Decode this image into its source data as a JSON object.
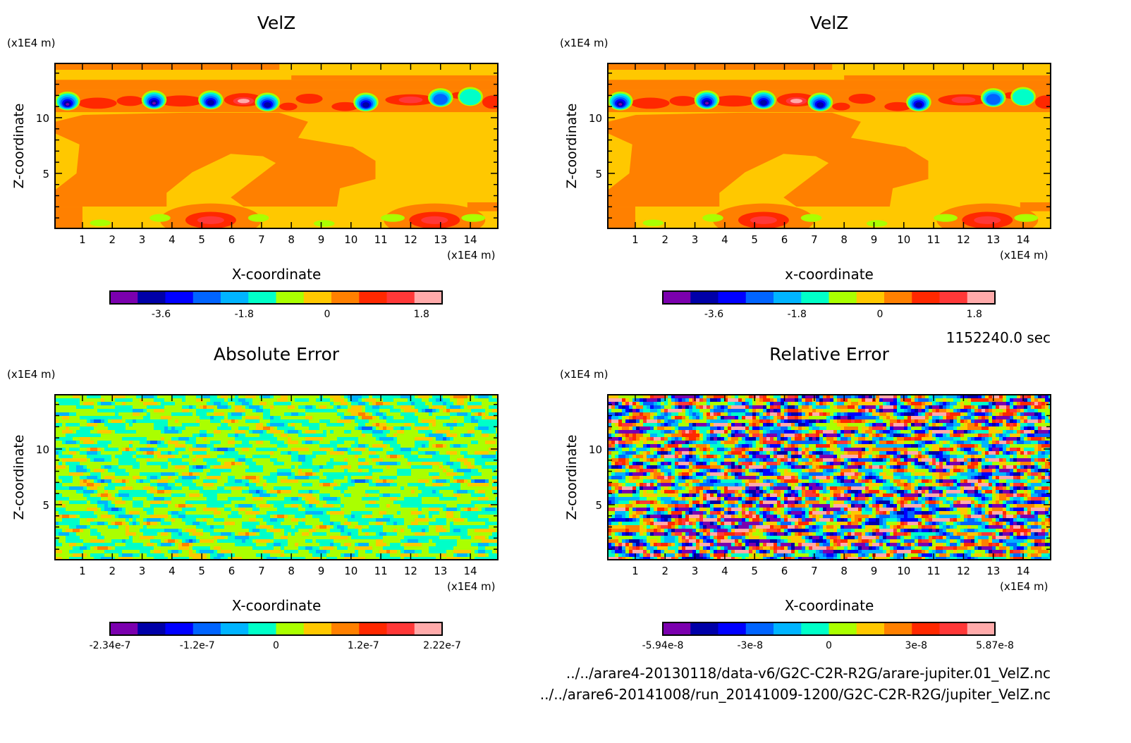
{
  "time_label": "1152240.0 sec",
  "files": [
    "../../arare4-20130118/data-v6/G2C-C2R-R2G/arare-jupiter.01_VelZ.nc",
    "../../arare6-20141008/run_20141009-1200/G2C-C2R-R2G/jupiter_VelZ.nc"
  ],
  "colors": [
    "#7b00ae",
    "#0000a8",
    "#0000ff",
    "#0064ff",
    "#00b4ff",
    "#00ffc8",
    "#aaff00",
    "#ffc800",
    "#ff8000",
    "#ff2800",
    "#ff3838",
    "#ffaaaa"
  ],
  "chart_data": [
    {
      "type": "heatmap",
      "title": "VelZ",
      "xlabel": "X-coordinate",
      "ylabel": "Z-coordinate",
      "x_unit": "(x1E4 m)",
      "y_unit": "(x1E4 m)",
      "xlim": [
        0.08,
        14.92
      ],
      "ylim": [
        0.06,
        14.87
      ],
      "xticks": [
        1,
        2,
        3,
        4,
        5,
        6,
        7,
        8,
        9,
        10,
        11,
        12,
        13,
        14
      ],
      "yticks": [
        5,
        10
      ],
      "colorbar": {
        "range": [
          -4.8,
          2.4
        ],
        "ticks": [
          "-3.6",
          "-1.8",
          "0",
          "1.8"
        ]
      },
      "background_value": -0.3,
      "regions": [
        {
          "value": 0.3,
          "rect": [
            0.08,
            14.3,
            7.6,
            14.87
          ]
        },
        {
          "value": 0.3,
          "rect": [
            0.08,
            12.5,
            14.92,
            13.4
          ]
        },
        {
          "value": 0.3,
          "rect": [
            8.0,
            13.4,
            14.92,
            13.8
          ]
        },
        {
          "value": 0.3,
          "rect": [
            0.08,
            10.5,
            14.92,
            12.5
          ]
        },
        {
          "value": 0.3,
          "polygon": [
            [
              0.08,
              9.63
            ],
            [
              1.02,
              10.25
            ],
            [
              4.47,
              10.45
            ],
            [
              7.59,
              10.45
            ],
            [
              8.56,
              9.63
            ],
            [
              8.23,
              8.19
            ],
            [
              10.06,
              7.37
            ],
            [
              10.82,
              6.13
            ],
            [
              10.82,
              4.49
            ],
            [
              9.63,
              3.66
            ],
            [
              9.53,
              2.02
            ],
            [
              6.4,
              2.02
            ],
            [
              5.97,
              2.84
            ],
            [
              7.48,
              5.93
            ],
            [
              7.05,
              6.54
            ],
            [
              5.97,
              6.75
            ],
            [
              4.68,
              5.1
            ],
            [
              3.82,
              3.25
            ],
            [
              3.82,
              2.02
            ],
            [
              0.08,
              2.02
            ]
          ]
        },
        {
          "value": -0.3,
          "polygon": [
            [
              0.08,
              8.6
            ],
            [
              0.9,
              7.6
            ],
            [
              0.8,
              5.0
            ],
            [
              0.08,
              3.5
            ]
          ]
        },
        {
          "value": 0.3,
          "rect": [
            0.08,
            0.06,
            1.0,
            2.02
          ]
        },
        {
          "value": 0.3,
          "rect": [
            13.9,
            1.6,
            14.92,
            2.4
          ]
        }
      ],
      "blobs": [
        {
          "x": 5.3,
          "z": 0.8,
          "rx": 1.7,
          "rz": 1.5,
          "value": 0.3
        },
        {
          "x": 5.3,
          "z": 0.8,
          "rx": 0.85,
          "rz": 0.75,
          "value": 0.9
        },
        {
          "x": 5.3,
          "z": 0.8,
          "rx": 0.45,
          "rz": 0.35,
          "value": 1.5
        },
        {
          "x": 12.8,
          "z": 0.8,
          "rx": 1.7,
          "rz": 1.5,
          "value": 0.3
        },
        {
          "x": 12.8,
          "z": 0.8,
          "rx": 0.85,
          "rz": 0.75,
          "value": 0.9
        },
        {
          "x": 12.8,
          "z": 0.8,
          "rx": 0.45,
          "rz": 0.35,
          "value": 1.5
        },
        {
          "x": 1.6,
          "z": 0.55,
          "rx": 0.35,
          "rz": 0.3,
          "value": -0.9
        },
        {
          "x": 3.6,
          "z": 1.0,
          "rx": 0.35,
          "rz": 0.35,
          "value": -0.9
        },
        {
          "x": 6.9,
          "z": 1.0,
          "rx": 0.35,
          "rz": 0.35,
          "value": -0.9
        },
        {
          "x": 9.1,
          "z": 0.5,
          "rx": 0.35,
          "rz": 0.3,
          "value": -0.9
        },
        {
          "x": 11.4,
          "z": 1.0,
          "rx": 0.4,
          "rz": 0.35,
          "value": -0.9
        },
        {
          "x": 14.1,
          "z": 1.0,
          "rx": 0.4,
          "rz": 0.35,
          "value": -0.9
        },
        {
          "x": 1.5,
          "z": 11.3,
          "rx": 0.65,
          "rz": 0.5,
          "value": 0.9
        },
        {
          "x": 2.6,
          "z": 11.5,
          "rx": 0.45,
          "rz": 0.45,
          "value": 0.9
        },
        {
          "x": 4.3,
          "z": 11.5,
          "rx": 0.75,
          "rz": 0.5,
          "value": 0.9
        },
        {
          "x": 6.4,
          "z": 11.6,
          "rx": 0.65,
          "rz": 0.6,
          "value": 0.9
        },
        {
          "x": 6.4,
          "z": 11.5,
          "rx": 0.35,
          "rz": 0.35,
          "value": 1.5
        },
        {
          "x": 6.4,
          "z": 11.5,
          "rx": 0.2,
          "rz": 0.2,
          "value": 2.1
        },
        {
          "x": 7.9,
          "z": 11.0,
          "rx": 0.3,
          "rz": 0.35,
          "value": 0.9
        },
        {
          "x": 8.6,
          "z": 11.7,
          "rx": 0.45,
          "rz": 0.45,
          "value": 0.9
        },
        {
          "x": 9.8,
          "z": 11.0,
          "rx": 0.45,
          "rz": 0.4,
          "value": 0.9
        },
        {
          "x": 12.0,
          "z": 11.6,
          "rx": 0.85,
          "rz": 0.5,
          "value": 0.9
        },
        {
          "x": 12.0,
          "z": 11.6,
          "rx": 0.4,
          "rz": 0.3,
          "value": 1.5
        },
        {
          "x": 13.6,
          "z": 12.0,
          "rx": 0.25,
          "rz": 0.3,
          "value": 0.9
        },
        {
          "x": 14.75,
          "z": 11.4,
          "rx": 0.35,
          "rz": 0.6,
          "value": 0.9
        }
      ],
      "vortices": [
        {
          "x": 0.5,
          "z": 11.5,
          "min": -4.5
        },
        {
          "x": 3.4,
          "z": 11.6,
          "min": -4.8
        },
        {
          "x": 5.3,
          "z": 11.6,
          "min": -4.2
        },
        {
          "x": 7.2,
          "z": 11.4,
          "min": -4.2
        },
        {
          "x": 10.5,
          "z": 11.4,
          "min": -4.2
        },
        {
          "x": 13.0,
          "z": 11.8,
          "min": -3.0
        },
        {
          "x": 14.0,
          "z": 11.9,
          "min": -1.8
        }
      ]
    },
    {
      "type": "heatmap",
      "title": "VelZ",
      "xlabel": "x-coordinate",
      "ylabel": "Z-coordinate",
      "x_unit": "(x1E4 m)",
      "y_unit": "(x1E4 m)",
      "xlim": [
        0.08,
        14.92
      ],
      "ylim": [
        0.06,
        14.87
      ],
      "xticks": [
        1,
        2,
        3,
        4,
        5,
        6,
        7,
        8,
        9,
        10,
        11,
        12,
        13,
        14
      ],
      "yticks": [
        5,
        10
      ],
      "colorbar": {
        "range": [
          -4.8,
          2.4
        ],
        "ticks": [
          "-3.6",
          "-1.8",
          "0",
          "1.8"
        ]
      },
      "same_field_as": 0
    },
    {
      "type": "heatmap",
      "title": "Absolute Error",
      "xlabel": "X-coordinate",
      "ylabel": "Z-coordinate",
      "x_unit": "(x1E4 m)",
      "y_unit": "(x1E4 m)",
      "xlim": [
        0.08,
        14.92
      ],
      "ylim": [
        0.06,
        14.87
      ],
      "xticks": [
        1,
        2,
        3,
        4,
        5,
        6,
        7,
        8,
        9,
        10,
        11,
        12,
        13,
        14
      ],
      "yticks": [
        5,
        10
      ],
      "colorbar": {
        "range": [
          -2.34e-07,
          2.22e-07
        ],
        "ticks": [
          "-2.34e-7",
          "-1.2e-7",
          "0",
          "1.2e-7",
          "2.22e-7"
        ]
      },
      "field": "noise",
      "noise_amplitude": 3e-08
    },
    {
      "type": "heatmap",
      "title": "Relative Error",
      "xlabel": "X-coordinate",
      "ylabel": "Z-coordinate",
      "x_unit": "(x1E4 m)",
      "y_unit": "(x1E4 m)",
      "xlim": [
        0.08,
        14.92
      ],
      "ylim": [
        0.06,
        14.87
      ],
      "xticks": [
        1,
        2,
        3,
        4,
        5,
        6,
        7,
        8,
        9,
        10,
        11,
        12,
        13,
        14
      ],
      "yticks": [
        5,
        10
      ],
      "colorbar": {
        "range": [
          -5.94e-08,
          5.87e-08
        ],
        "ticks": [
          "-5.94e-8",
          "-3e-8",
          "0",
          "3e-8",
          "5.87e-8"
        ]
      },
      "field": "noise",
      "noise_amplitude": 3.2e-08
    }
  ]
}
